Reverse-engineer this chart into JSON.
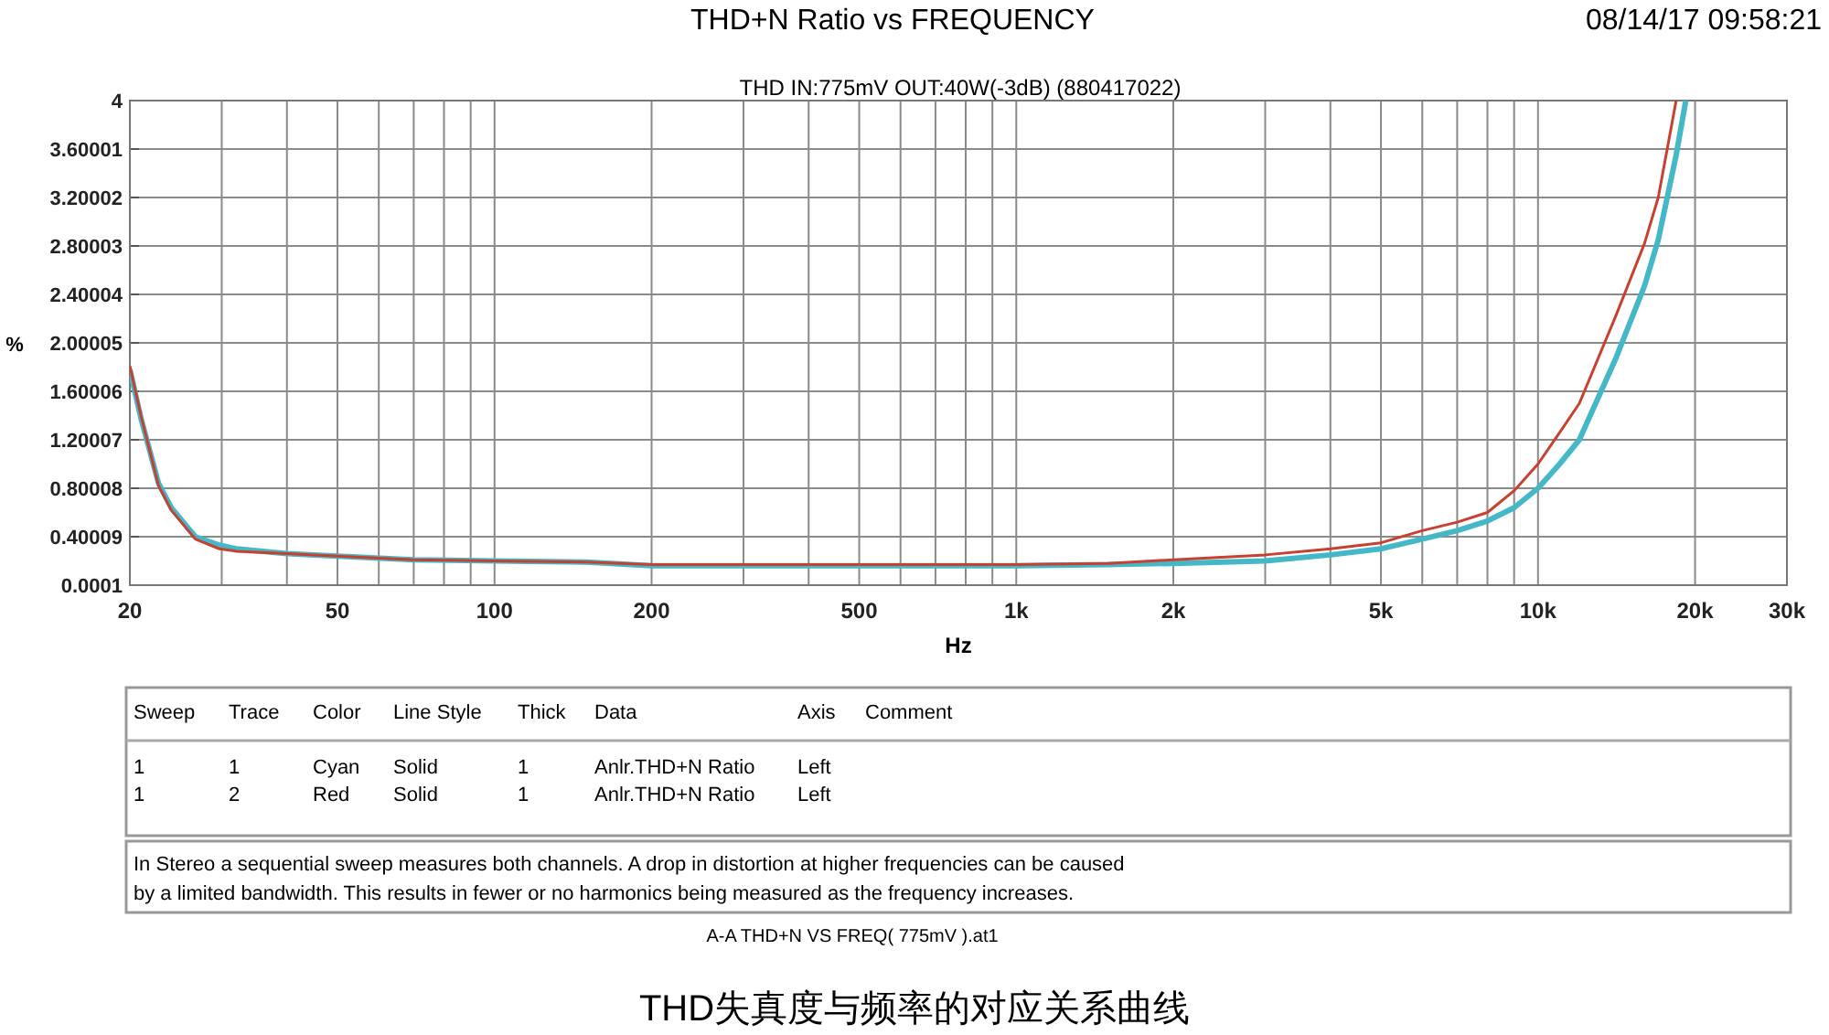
{
  "chart_data": {
    "type": "line",
    "title": "THD+N Ratio vs FREQUENCY",
    "subtitle": "THD  IN:775mV   OUT:40W(-3dB)       (880417022)",
    "xlabel": "Hz",
    "ylabel": "%",
    "annotations": [
      "08/14/17 09:58:21",
      "Sweep",
      "Trace",
      "Color",
      "Line Style",
      "Thick",
      "Data",
      "Axis",
      "Comment",
      "1",
      "1",
      "Cyan",
      "Solid",
      "1",
      "Anlr.THD+N Ratio",
      "Left",
      "1",
      "2",
      "Red",
      "Solid",
      "1",
      "Anlr.THD+N Ratio",
      "Left",
      "In Stereo a sequential sweep measures both channels.  A drop in distortion at higher frequencies can be caused",
      "by a limited bandwidth.  This results in fewer or no harmonics being measured as the frequency increases.",
      "A-A THD+N VS FREQ( 775mV ).at1",
      "THD失真度与频率的对应关系曲线"
    ],
    "log": "x",
    "grid": true,
    "line_style": "solid",
    "xlim": [
      20,
      30000
    ],
    "ylim": [
      0.0001,
      4
    ],
    "xticks": [
      20,
      {
        "value": 30,
        "label": null
      },
      {
        "value": 40,
        "label": null
      },
      50,
      {
        "value": 60,
        "label": null
      },
      {
        "value": 70,
        "label": null
      },
      {
        "value": 80,
        "label": null
      },
      {
        "value": 90,
        "label": null
      },
      100,
      200,
      {
        "value": 300,
        "label": null
      },
      {
        "value": 400,
        "label": null
      },
      500,
      {
        "value": 600,
        "label": null
      },
      {
        "value": 700,
        "label": null
      },
      {
        "value": 800,
        "label": null
      },
      {
        "value": 900,
        "label": null
      },
      {
        "value": 1000,
        "label": "1k"
      },
      {
        "value": 2000,
        "label": "2k"
      },
      {
        "value": 3000,
        "label": null
      },
      {
        "value": 4000,
        "label": null
      },
      {
        "value": 5000,
        "label": "5k"
      },
      {
        "value": 6000,
        "label": null
      },
      {
        "value": 7000,
        "label": null
      },
      {
        "value": 8000,
        "label": null
      },
      {
        "value": 9000,
        "label": null
      },
      {
        "value": 10000,
        "label": "10k"
      },
      {
        "value": 20000,
        "label": "20k"
      },
      {
        "value": 30000,
        "label": "30k"
      }
    ],
    "yticks": [
      0.0001,
      0.40009,
      0.80008,
      1.20007,
      1.60006,
      2.00005,
      2.40004,
      2.80003,
      3.20002,
      3.60001,
      4
    ],
    "x": [
      20,
      21,
      22.7,
      24,
      26.7,
      29.7,
      32,
      40,
      50,
      70,
      100,
      150,
      200,
      300,
      500,
      1000,
      1500,
      2000,
      3000,
      4000,
      5000,
      6000,
      7000,
      8000,
      9000,
      10000,
      11000,
      12000,
      14060,
      16000,
      17000,
      18400,
      19200
    ],
    "series": [
      {
        "color": "#45b8c8",
        "values": [
          1.78,
          1.38,
          0.84,
          0.64,
          0.4,
          0.33,
          0.3,
          0.26,
          0.24,
          0.21,
          0.2,
          0.19,
          0.16,
          0.16,
          0.16,
          0.16,
          0.17,
          0.18,
          0.2,
          0.25,
          0.3,
          0.38,
          0.45,
          0.53,
          0.64,
          0.8,
          1.0,
          1.2,
          1.86,
          2.47,
          2.85,
          3.55,
          4.0
        ]
      },
      {
        "color": "#c8402f",
        "values": [
          1.81,
          1.4,
          0.82,
          0.62,
          0.38,
          0.3,
          0.28,
          0.26,
          0.24,
          0.21,
          0.2,
          0.19,
          0.17,
          0.17,
          0.17,
          0.17,
          0.18,
          0.21,
          0.25,
          0.3,
          0.35,
          0.45,
          0.52,
          0.6,
          0.78,
          1.0,
          1.26,
          1.5,
          2.21,
          2.82,
          3.2,
          4.0,
          null
        ]
      }
    ]
  }
}
